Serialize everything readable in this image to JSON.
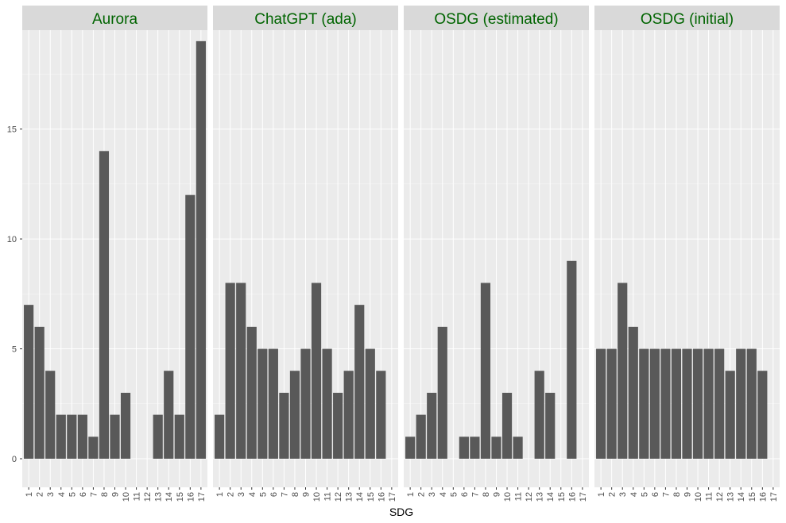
{
  "chart_data": {
    "type": "bar",
    "xlabel": "SDG",
    "ylabel": "",
    "ylim": [
      0,
      19.5
    ],
    "yticks": [
      0,
      5,
      10,
      15
    ],
    "categories": [
      "1",
      "2",
      "3",
      "4",
      "5",
      "6",
      "7",
      "8",
      "9",
      "10",
      "11",
      "12",
      "13",
      "14",
      "15",
      "16",
      "17"
    ],
    "grid": true,
    "colors": {
      "bar": "#595959",
      "panel_bg": "#ebebeb",
      "strip_bg": "#d9d9d9",
      "strip_text": "#006400",
      "grid_major": "#ffffff"
    },
    "facets": [
      {
        "name": "Aurora",
        "values": [
          7,
          6,
          4,
          2,
          2,
          2,
          1,
          14,
          2,
          3,
          0,
          0,
          2,
          4,
          2,
          12,
          19
        ]
      },
      {
        "name": "ChatGPT (ada)",
        "values": [
          2,
          8,
          8,
          6,
          5,
          5,
          3,
          4,
          5,
          8,
          5,
          3,
          4,
          7,
          5,
          4,
          0
        ]
      },
      {
        "name": "OSDG (estimated)",
        "values": [
          1,
          2,
          3,
          6,
          0,
          1,
          1,
          8,
          1,
          3,
          1,
          0,
          4,
          3,
          0,
          9,
          0
        ]
      },
      {
        "name": "OSDG (initial)",
        "values": [
          5,
          5,
          8,
          6,
          5,
          5,
          5,
          5,
          5,
          5,
          5,
          5,
          4,
          5,
          5,
          4,
          0
        ]
      }
    ]
  }
}
